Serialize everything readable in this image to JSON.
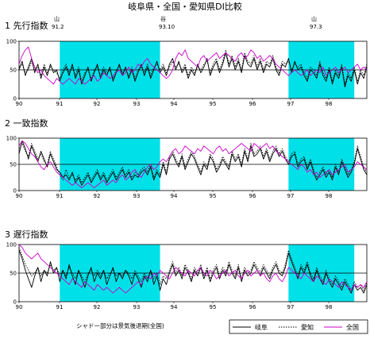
{
  "title": "岐阜県・全国・愛知県DI比較",
  "colors": {
    "shade": "#00e0e8",
    "gifu": "#000000",
    "aichi": "#000000",
    "national": "#cc00cc"
  },
  "markers": {
    "peak1": {
      "kind": "山",
      "label": "91.2"
    },
    "trough": {
      "kind": "谷",
      "label": "93.10"
    },
    "peak2": {
      "kind": "山",
      "label": "97.3"
    }
  },
  "footnote": "シャドー部分は景気後退期(全国)",
  "legend": [
    {
      "name": "岐阜",
      "style": "solid"
    },
    {
      "name": "愛知",
      "style": "dotted"
    },
    {
      "name": "全国",
      "style": "magenta"
    }
  ],
  "chart_data": [
    {
      "type": "line",
      "title": "1  先行指数",
      "x_tick_labels": [
        "90",
        "91",
        "92",
        "93",
        "94",
        "95",
        "96",
        "97",
        "98"
      ],
      "yticks": [
        0,
        50,
        100
      ],
      "ylim": [
        0,
        100
      ],
      "reference_line": 50,
      "shaded_periods": [
        [
          "1991-02",
          "1993-10"
        ],
        [
          "1997-03",
          "1998-12"
        ]
      ],
      "x_start": "1990-01",
      "series": [
        {
          "name": "岐阜",
          "values": [
            50,
            65,
            40,
            55,
            70,
            45,
            60,
            35,
            55,
            40,
            60,
            45,
            50,
            30,
            45,
            55,
            40,
            60,
            35,
            50,
            25,
            40,
            55,
            30,
            45,
            60,
            35,
            50,
            40,
            55,
            30,
            45,
            60,
            40,
            55,
            35,
            50,
            30,
            45,
            60,
            40,
            55,
            35,
            50,
            65,
            45,
            55,
            40,
            60,
            70,
            50,
            65,
            45,
            55,
            35,
            50,
            40,
            60,
            45,
            55,
            70,
            40,
            55,
            65,
            45,
            60,
            80,
            55,
            70,
            50,
            65,
            45,
            75,
            60,
            55,
            70,
            50,
            65,
            45,
            60,
            55,
            70,
            50,
            40,
            60,
            55,
            70,
            45,
            65,
            50,
            55,
            40,
            30,
            50,
            45,
            35,
            60,
            40,
            30,
            50,
            25,
            45,
            35,
            55,
            20,
            40,
            30,
            50,
            25,
            45,
            35,
            55
          ]
        },
        {
          "name": "愛知",
          "values": [
            55,
            60,
            45,
            50,
            65,
            50,
            55,
            40,
            60,
            45,
            55,
            50,
            45,
            35,
            50,
            60,
            45,
            55,
            40,
            55,
            30,
            45,
            50,
            35,
            50,
            55,
            40,
            55,
            45,
            50,
            35,
            50,
            55,
            45,
            50,
            40,
            55,
            35,
            50,
            55,
            45,
            60,
            40,
            55,
            60,
            50,
            60,
            45,
            55,
            65,
            55,
            60,
            50,
            60,
            40,
            55,
            45,
            55,
            50,
            60,
            65,
            45,
            60,
            70,
            50,
            65,
            85,
            60,
            75,
            55,
            70,
            50,
            80,
            65,
            60,
            75,
            55,
            70,
            50,
            65,
            60,
            75,
            55,
            45,
            65,
            60,
            65,
            50,
            60,
            55,
            60,
            45,
            35,
            55,
            50,
            40,
            65,
            45,
            35,
            55,
            30,
            50,
            40,
            60,
            25,
            45,
            35,
            55,
            30,
            50,
            40,
            60
          ]
        },
        {
          "name": "全国",
          "values": [
            60,
            75,
            85,
            90,
            70,
            55,
            45,
            50,
            40,
            35,
            30,
            25,
            35,
            30,
            25,
            30,
            35,
            30,
            25,
            35,
            30,
            25,
            30,
            35,
            40,
            30,
            35,
            45,
            40,
            35,
            40,
            45,
            50,
            40,
            45,
            55,
            45,
            50,
            60,
            55,
            65,
            70,
            60,
            55,
            50,
            45,
            40,
            35,
            40,
            50,
            70,
            80,
            75,
            85,
            70,
            65,
            60,
            55,
            70,
            75,
            65,
            70,
            75,
            80,
            70,
            75,
            80,
            75,
            70,
            65,
            75,
            80,
            70,
            75,
            85,
            80,
            70,
            75,
            65,
            70,
            75,
            70,
            60,
            55,
            50,
            45,
            40,
            45,
            50,
            45,
            40,
            45,
            50,
            40,
            45,
            50,
            45,
            55,
            40,
            45,
            50,
            55,
            45,
            50,
            55,
            45,
            50,
            55,
            60,
            50,
            55,
            50
          ]
        }
      ]
    },
    {
      "type": "line",
      "title": "2  一致指数",
      "x_tick_labels": [
        "90",
        "91",
        "92",
        "93",
        "94",
        "95",
        "96",
        "97",
        "98"
      ],
      "yticks": [
        0,
        50,
        100
      ],
      "ylim": [
        0,
        100
      ],
      "reference_line": 50,
      "shaded_periods": [
        [
          "1991-02",
          "1993-10"
        ],
        [
          "1997-03",
          "1998-12"
        ]
      ],
      "x_start": "1990-01",
      "series": [
        {
          "name": "岐阜",
          "values": [
            70,
            95,
            80,
            60,
            85,
            70,
            55,
            75,
            60,
            45,
            70,
            55,
            40,
            35,
            25,
            30,
            20,
            35,
            15,
            25,
            10,
            20,
            30,
            15,
            25,
            35,
            20,
            30,
            15,
            25,
            35,
            20,
            30,
            40,
            25,
            35,
            20,
            30,
            25,
            35,
            40,
            30,
            45,
            20,
            35,
            25,
            50,
            30,
            60,
            70,
            55,
            45,
            65,
            40,
            55,
            70,
            60,
            45,
            30,
            50,
            40,
            65,
            55,
            35,
            45,
            60,
            50,
            40,
            70,
            55,
            65,
            45,
            75,
            55,
            85,
            65,
            70,
            80,
            60,
            75,
            55,
            70,
            80,
            65,
            75,
            60,
            50,
            65,
            70,
            45,
            55,
            60,
            40,
            55,
            35,
            20,
            30,
            40,
            25,
            35,
            20,
            45,
            30,
            55,
            40,
            25,
            35,
            50,
            80,
            60,
            40,
            30
          ]
        },
        {
          "name": "愛知",
          "values": [
            80,
            90,
            75,
            65,
            90,
            75,
            60,
            70,
            55,
            50,
            75,
            60,
            45,
            30,
            20,
            40,
            25,
            30,
            20,
            30,
            15,
            25,
            35,
            20,
            30,
            40,
            25,
            35,
            20,
            30,
            40,
            25,
            35,
            45,
            30,
            40,
            25,
            35,
            30,
            40,
            45,
            35,
            50,
            25,
            40,
            30,
            55,
            35,
            65,
            75,
            60,
            50,
            70,
            45,
            60,
            75,
            65,
            50,
            35,
            55,
            45,
            70,
            60,
            40,
            50,
            65,
            55,
            45,
            75,
            60,
            70,
            50,
            80,
            60,
            90,
            70,
            75,
            85,
            65,
            80,
            60,
            75,
            85,
            70,
            80,
            65,
            55,
            70,
            75,
            50,
            60,
            65,
            45,
            60,
            40,
            25,
            35,
            45,
            30,
            40,
            25,
            50,
            35,
            60,
            45,
            30,
            40,
            55,
            85,
            65,
            45,
            35
          ]
        },
        {
          "name": "全国",
          "values": [
            85,
            95,
            90,
            80,
            70,
            65,
            55,
            45,
            40,
            50,
            55,
            45,
            35,
            30,
            25,
            20,
            15,
            10,
            15,
            10,
            5,
            10,
            15,
            10,
            5,
            10,
            15,
            20,
            10,
            15,
            20,
            15,
            25,
            30,
            20,
            25,
            35,
            40,
            30,
            25,
            35,
            45,
            50,
            40,
            45,
            55,
            60,
            55,
            65,
            75,
            80,
            70,
            75,
            85,
            80,
            75,
            70,
            80,
            75,
            85,
            80,
            75,
            70,
            80,
            85,
            75,
            80,
            70,
            75,
            80,
            85,
            90,
            85,
            80,
            75,
            90,
            85,
            80,
            85,
            90,
            80,
            85,
            75,
            70,
            65,
            60,
            55,
            50,
            45,
            40,
            50,
            45,
            35,
            40,
            30,
            35,
            25,
            30,
            35,
            40,
            30,
            35,
            40,
            45,
            50,
            35,
            40,
            45,
            55,
            50,
            45,
            40
          ]
        }
      ]
    },
    {
      "type": "line",
      "title": "3  遅行指数",
      "x_tick_labels": [
        "90",
        "91",
        "92",
        "93",
        "94",
        "95",
        "96",
        "97",
        "98"
      ],
      "yticks": [
        0,
        50,
        100
      ],
      "ylim": [
        0,
        100
      ],
      "reference_line": 50,
      "shaded_periods": [
        [
          "1991-02",
          "1993-10"
        ],
        [
          "1997-03",
          "1998-12"
        ]
      ],
      "x_start": "1990-01",
      "series": [
        {
          "name": "岐阜",
          "values": [
            90,
            75,
            55,
            40,
            25,
            45,
            60,
            35,
            55,
            45,
            70,
            50,
            60,
            35,
            55,
            40,
            65,
            45,
            30,
            55,
            40,
            25,
            45,
            60,
            35,
            50,
            40,
            55,
            30,
            45,
            60,
            35,
            50,
            40,
            55,
            45,
            30,
            50,
            40,
            25,
            45,
            35,
            55,
            30,
            45,
            20,
            40,
            30,
            50,
            65,
            45,
            55,
            40,
            60,
            50,
            35,
            55,
            45,
            60,
            40,
            55,
            35,
            50,
            60,
            40,
            55,
            45,
            65,
            50,
            40,
            60,
            35,
            55,
            45,
            50,
            65,
            55,
            45,
            60,
            50,
            40,
            55,
            65,
            50,
            45,
            60,
            85,
            70,
            55,
            40,
            60,
            50,
            65,
            45,
            35,
            55,
            40,
            30,
            50,
            35,
            25,
            40,
            30,
            20,
            35,
            25,
            15,
            30,
            20,
            25,
            15,
            30
          ]
        },
        {
          "name": "愛知",
          "values": [
            95,
            80,
            65,
            55,
            45,
            50,
            60,
            45,
            55,
            50,
            65,
            55,
            60,
            45,
            55,
            45,
            60,
            50,
            40,
            55,
            45,
            35,
            50,
            55,
            45,
            55,
            45,
            55,
            40,
            50,
            55,
            45,
            50,
            45,
            55,
            50,
            40,
            55,
            45,
            35,
            50,
            40,
            55,
            40,
            50,
            30,
            45,
            40,
            55,
            70,
            50,
            60,
            45,
            65,
            55,
            40,
            60,
            50,
            65,
            45,
            60,
            40,
            55,
            65,
            45,
            60,
            50,
            70,
            55,
            45,
            65,
            40,
            60,
            50,
            55,
            70,
            60,
            50,
            65,
            55,
            45,
            60,
            70,
            55,
            50,
            65,
            90,
            75,
            60,
            45,
            65,
            55,
            70,
            50,
            40,
            60,
            45,
            35,
            55,
            40,
            30,
            45,
            35,
            25,
            40,
            30,
            20,
            35,
            25,
            30,
            20,
            35
          ]
        },
        {
          "name": "全国",
          "values": [
            100,
            95,
            85,
            80,
            75,
            80,
            85,
            75,
            70,
            65,
            60,
            55,
            50,
            45,
            40,
            35,
            30,
            40,
            35,
            30,
            25,
            35,
            30,
            25,
            20,
            30,
            25,
            20,
            25,
            20,
            15,
            20,
            25,
            20,
            15,
            20,
            25,
            30,
            35,
            30,
            40,
            45,
            40,
            50,
            45,
            55,
            50,
            45,
            40,
            50,
            60,
            55,
            50,
            45,
            55,
            50,
            45,
            55,
            60,
            50,
            45,
            55,
            50,
            40,
            45,
            50,
            55,
            45,
            50,
            55,
            45,
            40,
            50,
            55,
            45,
            50,
            55,
            45,
            50,
            40,
            35,
            45,
            50,
            40,
            35,
            45,
            60,
            55,
            50,
            45,
            40,
            50,
            45,
            40,
            35,
            45,
            40,
            35,
            30,
            40,
            35,
            30,
            25,
            35,
            30,
            25,
            20,
            30,
            25,
            30,
            25,
            35
          ]
        }
      ]
    }
  ]
}
